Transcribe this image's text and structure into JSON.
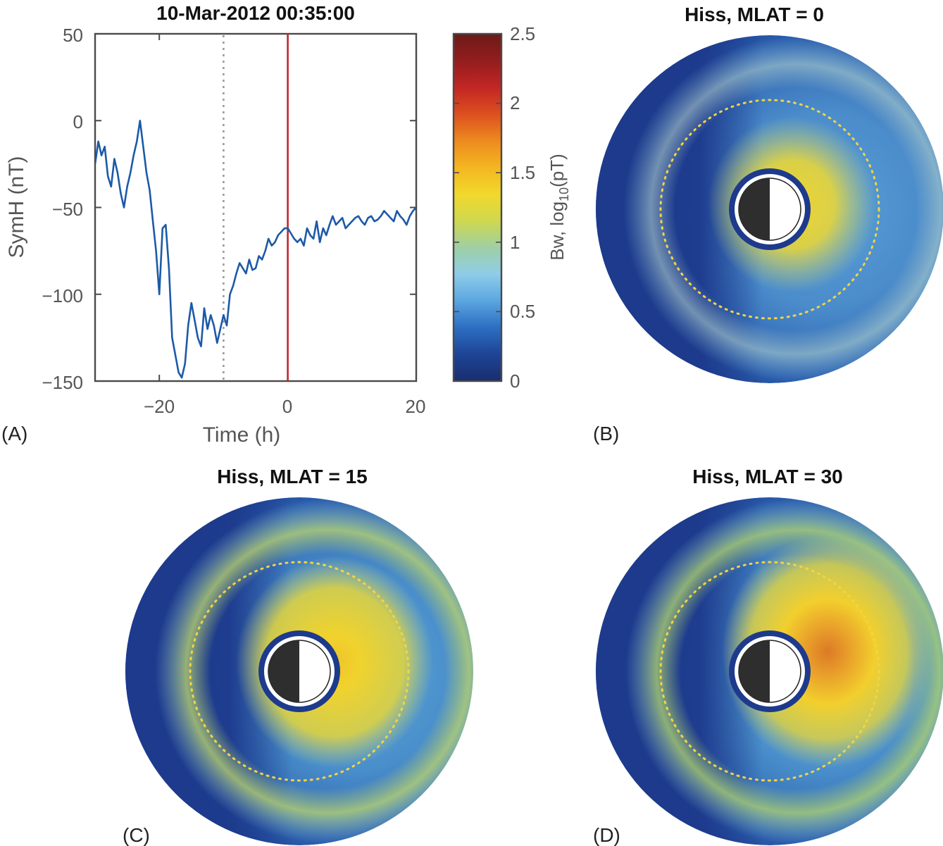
{
  "chart_data": [
    {
      "panel_label": "(A)",
      "type": "line",
      "title": "10-Mar-2012 00:35:00",
      "xlabel": "Time (h)",
      "ylabel": "SymH (nT)",
      "xlim": [
        -30,
        20
      ],
      "ylim": [
        -150,
        50
      ],
      "xticks": [
        -20,
        0,
        20
      ],
      "xtick_labels": [
        "−20",
        "0",
        "20"
      ],
      "yticks": [
        50,
        0,
        -50,
        -100,
        -150
      ],
      "ytick_labels": [
        "50",
        "0",
        "−50",
        "−100",
        "−150"
      ],
      "markers": [
        {
          "name": "storm-onset",
          "x": -10,
          "style": "dotted",
          "color": "#9a9a9a"
        },
        {
          "name": "current-time",
          "x": 0,
          "style": "solid",
          "color": "#c0272d"
        }
      ],
      "series": [
        {
          "name": "SymH",
          "color": "#1c5aa8",
          "x": [
            -30,
            -29.5,
            -29,
            -28.5,
            -28,
            -27.5,
            -27,
            -26.5,
            -26,
            -25.5,
            -25,
            -24.5,
            -24,
            -23.5,
            -23,
            -22.5,
            -22,
            -21.5,
            -21,
            -20.5,
            -20,
            -19.5,
            -19,
            -18.5,
            -18,
            -17.5,
            -17,
            -16.5,
            -16,
            -15.5,
            -15,
            -14.5,
            -14,
            -13.5,
            -13,
            -12.5,
            -12,
            -11.5,
            -11,
            -10.5,
            -10,
            -9.5,
            -9,
            -8.5,
            -8,
            -7.5,
            -7,
            -6.5,
            -6,
            -5.5,
            -5,
            -4.5,
            -4,
            -3.5,
            -3,
            -2.5,
            -2,
            -1.5,
            -1,
            -0.5,
            0,
            0.5,
            1,
            1.5,
            2,
            2.5,
            3,
            3.5,
            4,
            4.5,
            5,
            5.5,
            6,
            6.5,
            7,
            7.5,
            8,
            8.5,
            9,
            9.5,
            10,
            10.5,
            11,
            11.5,
            12,
            12.5,
            13,
            13.5,
            14,
            14.5,
            15,
            15.5,
            16,
            16.5,
            17,
            17.5,
            18,
            18.5,
            19,
            19.5,
            20
          ],
          "y": [
            -25,
            -12,
            -20,
            -15,
            -32,
            -38,
            -22,
            -30,
            -42,
            -50,
            -38,
            -30,
            -20,
            -12,
            0,
            -15,
            -30,
            -40,
            -58,
            -75,
            -100,
            -62,
            -60,
            -85,
            -125,
            -135,
            -145,
            -148,
            -140,
            -118,
            -105,
            -115,
            -125,
            -130,
            -108,
            -120,
            -112,
            -118,
            -128,
            -120,
            -112,
            -118,
            -100,
            -95,
            -88,
            -82,
            -85,
            -88,
            -80,
            -86,
            -85,
            -78,
            -80,
            -75,
            -68,
            -72,
            -70,
            -66,
            -64,
            -62,
            -62,
            -65,
            -68,
            -70,
            -68,
            -72,
            -62,
            -66,
            -68,
            -58,
            -70,
            -62,
            -66,
            -60,
            -55,
            -60,
            -58,
            -56,
            -62,
            -60,
            -58,
            -56,
            -55,
            -58,
            -60,
            -56,
            -55,
            -58,
            -57,
            -55,
            -52,
            -54,
            -56,
            -58,
            -52,
            -55,
            -57,
            -60,
            -55,
            -52,
            -50
          ]
        }
      ]
    },
    {
      "type": "colorbar",
      "label": "Bw, log10(pT)",
      "label_main": "Bw, log",
      "label_sub": "10",
      "label_tail": "(pT)",
      "range": [
        0,
        2.5
      ],
      "ticks": [
        0,
        0.5,
        1,
        1.5,
        2,
        2.5
      ],
      "tick_labels": [
        "0",
        "0.5",
        "1",
        "1.5",
        "2",
        "2.5"
      ],
      "colormap": [
        "#1a2d6e",
        "#1d4496",
        "#2d6ec2",
        "#5aa6e0",
        "#8fcde8",
        "#9fcfa4",
        "#cfd84e",
        "#f2d82c",
        "#f4b621",
        "#ed8a1f",
        "#dd4f1f",
        "#c22624",
        "#931d1d",
        "#6b1a18"
      ]
    },
    {
      "panel_label": "(B)",
      "type": "heatmap",
      "title": "Hiss, MLAT = 0",
      "projection": "polar",
      "peak_log10_pT": 1.55,
      "color_low": "#1d3a8c",
      "color_peak": "#f0d42e",
      "color_outer_ring": "#b9d8cf"
    },
    {
      "panel_label": "(C)",
      "type": "heatmap",
      "title": "Hiss, MLAT = 15",
      "projection": "polar",
      "peak_log10_pT": 1.65,
      "color_low": "#1d3a8c",
      "color_peak": "#edc42a",
      "color_outer_ring": "#bfd86d"
    },
    {
      "panel_label": "(D)",
      "type": "heatmap",
      "title": "Hiss, MLAT = 30",
      "projection": "polar",
      "peak_log10_pT": 1.85,
      "color_low": "#1d3a8c",
      "color_peak": "#db7a26",
      "color_outer_ring": "#b3d66f"
    }
  ]
}
